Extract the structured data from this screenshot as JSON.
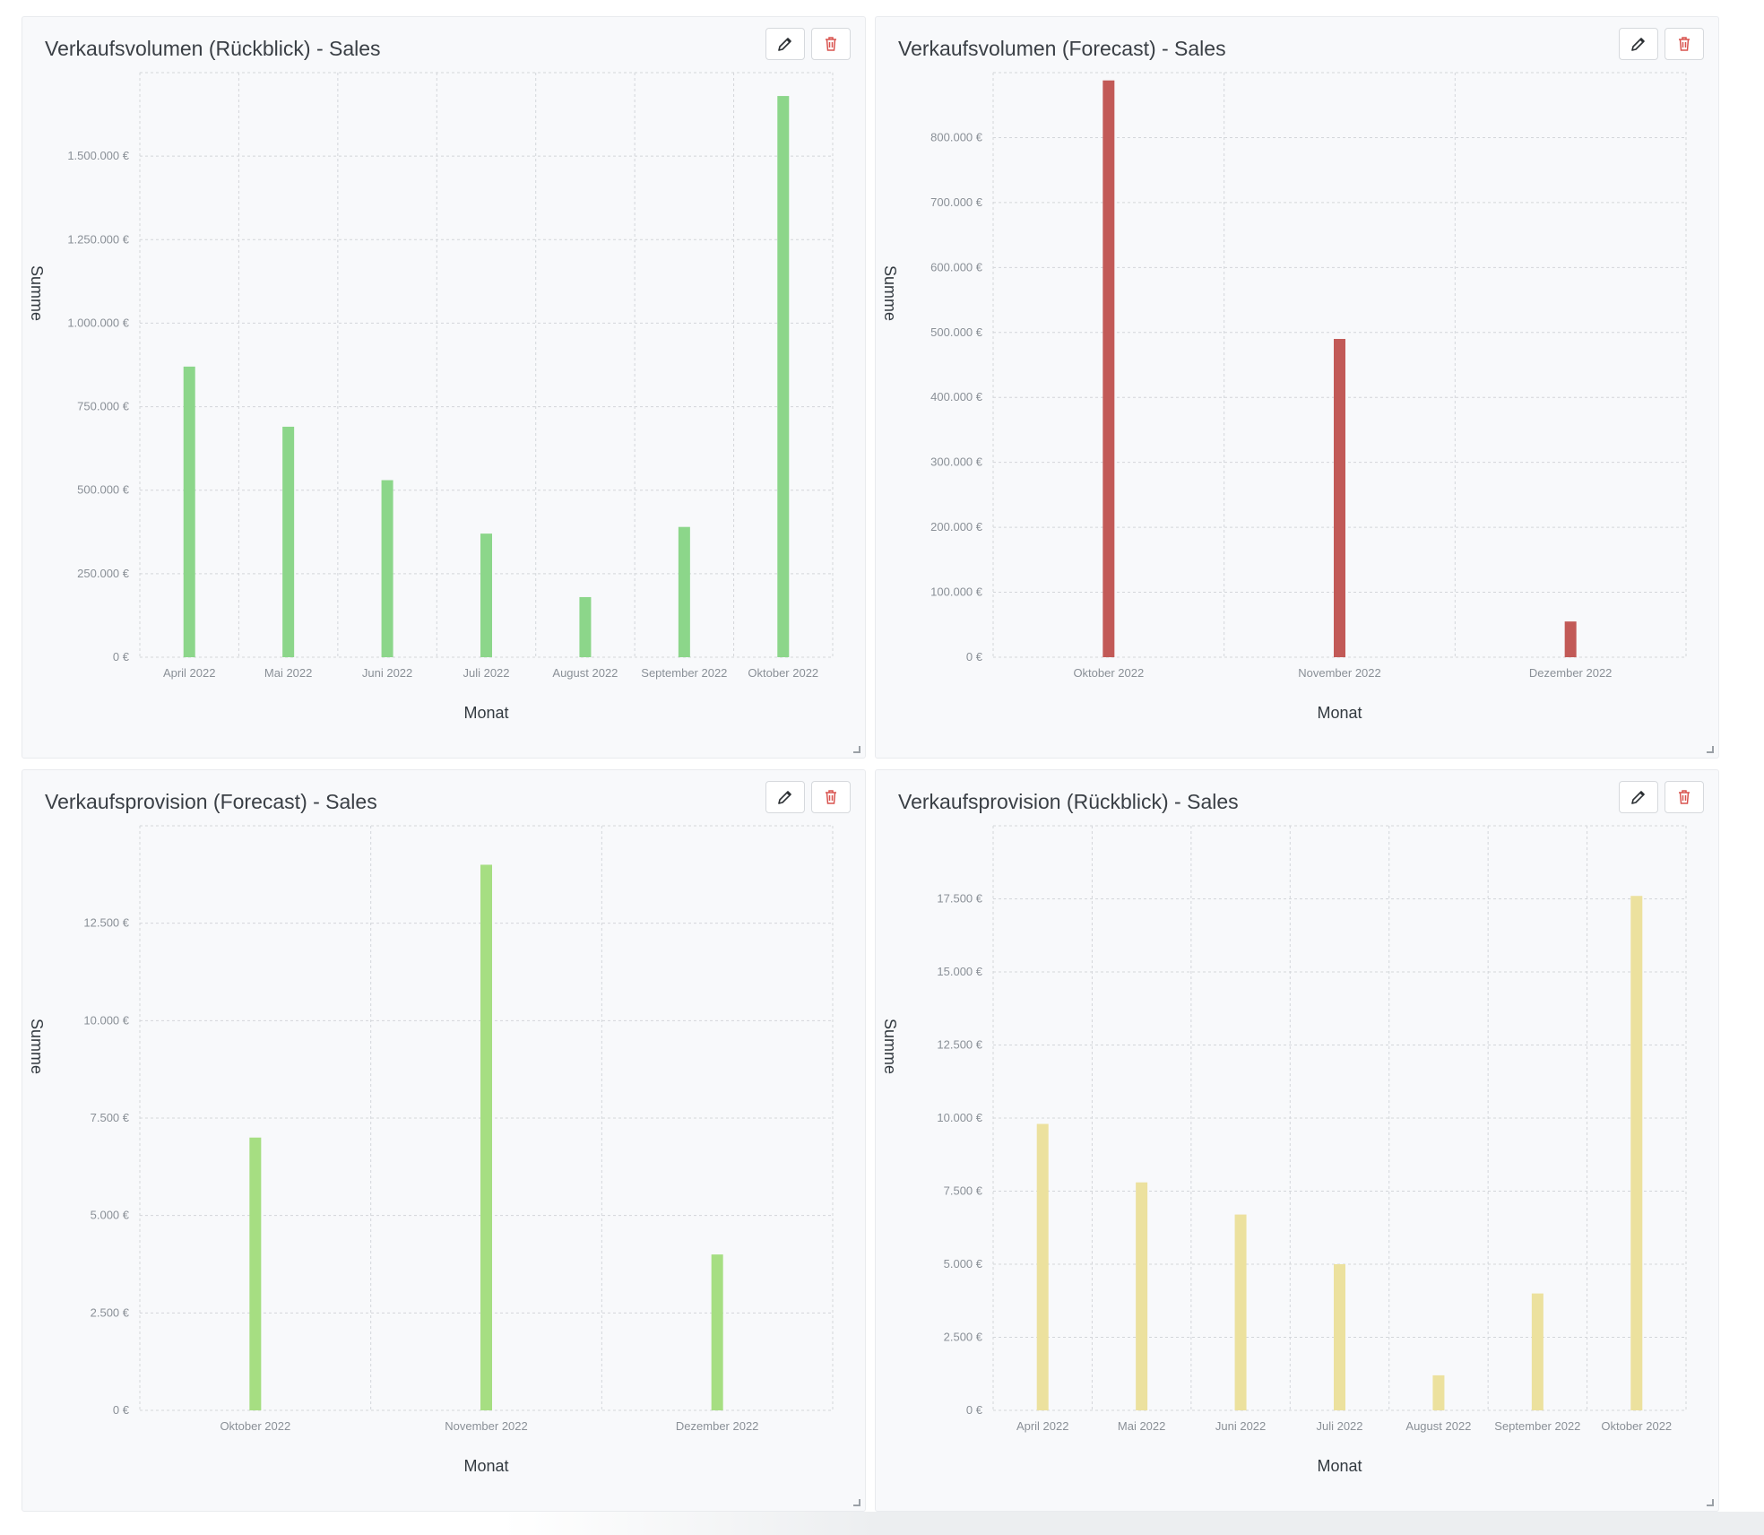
{
  "panels": [
    {
      "title": "Verkaufsvolumen (Rückblick) - Sales",
      "edit_icon": "pencil-icon",
      "delete_icon": "trash-icon",
      "chart_data": {
        "type": "bar",
        "categories": [
          "April 2022",
          "Mai 2022",
          "Juni 2022",
          "Juli 2022",
          "August 2022",
          "September 2022",
          "Oktober 2022"
        ],
        "values": [
          870000,
          690000,
          530000,
          370000,
          180000,
          390000,
          1680000
        ],
        "color": "#8cd68a",
        "xlabel": "Monat",
        "ylabel": "Summe",
        "ylim": [
          0,
          1750000
        ],
        "yticks": [
          0,
          250000,
          500000,
          750000,
          1000000,
          1250000,
          1500000
        ],
        "ytick_labels": [
          "0 €",
          "250.000 €",
          "500.000 €",
          "750.000 €",
          "1.000.000 €",
          "1.250.000 €",
          "1.500.000 €"
        ],
        "grid": true
      }
    },
    {
      "title": "Verkaufsvolumen (Forecast) - Sales",
      "edit_icon": "pencil-icon",
      "delete_icon": "trash-icon",
      "chart_data": {
        "type": "bar",
        "categories": [
          "Oktober 2022",
          "November 2022",
          "Dezember 2022"
        ],
        "values": [
          888000,
          490000,
          55000
        ],
        "color": "#c25a57",
        "xlabel": "Monat",
        "ylabel": "Summe",
        "ylim": [
          0,
          900000
        ],
        "yticks": [
          0,
          100000,
          200000,
          300000,
          400000,
          500000,
          600000,
          700000,
          800000
        ],
        "ytick_labels": [
          "0 €",
          "100.000 €",
          "200.000 €",
          "300.000 €",
          "400.000 €",
          "500.000 €",
          "600.000 €",
          "700.000 €",
          "800.000 €"
        ],
        "grid": true
      }
    },
    {
      "title": "Verkaufsprovision (Forecast) - Sales",
      "edit_icon": "pencil-icon",
      "delete_icon": "trash-icon",
      "chart_data": {
        "type": "bar",
        "categories": [
          "Oktober 2022",
          "November 2022",
          "Dezember 2022"
        ],
        "values": [
          7000,
          14000,
          4000
        ],
        "color": "#a6de82",
        "xlabel": "Monat",
        "ylabel": "Summe",
        "ylim": [
          0,
          15000
        ],
        "yticks": [
          0,
          2500,
          5000,
          7500,
          10000,
          12500
        ],
        "ytick_labels": [
          "0 €",
          "2.500 €",
          "5.000 €",
          "7.500 €",
          "10.000 €",
          "12.500 €"
        ],
        "grid": true
      }
    },
    {
      "title": "Verkaufsprovision (Rückblick) - Sales",
      "edit_icon": "pencil-icon",
      "delete_icon": "trash-icon",
      "chart_data": {
        "type": "bar",
        "categories": [
          "April 2022",
          "Mai 2022",
          "Juni 2022",
          "Juli 2022",
          "August 2022",
          "September 2022",
          "Oktober 2022"
        ],
        "values": [
          9800,
          7800,
          6700,
          5000,
          1200,
          4000,
          17600
        ],
        "color": "#ece19e",
        "xlabel": "Monat",
        "ylabel": "Summe",
        "ylim": [
          0,
          20000
        ],
        "yticks": [
          0,
          2500,
          5000,
          7500,
          10000,
          12500,
          15000,
          17500
        ],
        "ytick_labels": [
          "0 €",
          "2.500 €",
          "5.000 €",
          "7.500 €",
          "10.000 €",
          "12.500 €",
          "15.000 €",
          "17.500 €"
        ],
        "grid": true
      }
    }
  ]
}
